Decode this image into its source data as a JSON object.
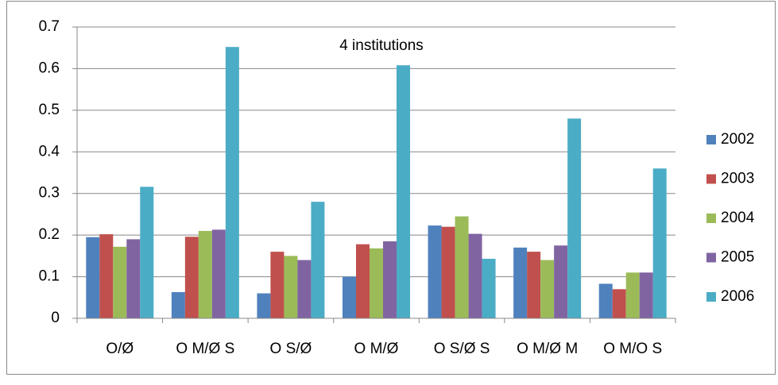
{
  "chart_data": {
    "type": "bar",
    "title": "4 institutions",
    "categories": [
      "O/Ø",
      "O M/Ø S",
      "O S/Ø",
      "O M/Ø",
      "O S/Ø S",
      "O M/Ø M",
      "O M/O S"
    ],
    "series": [
      {
        "name": "2002",
        "color": "#4f81bd",
        "values": [
          0.195,
          0.063,
          0.06,
          0.1,
          0.223,
          0.17,
          0.083
        ]
      },
      {
        "name": "2003",
        "color": "#c0504d",
        "values": [
          0.202,
          0.196,
          0.16,
          0.178,
          0.22,
          0.16,
          0.07
        ]
      },
      {
        "name": "2004",
        "color": "#9bbb59",
        "values": [
          0.172,
          0.21,
          0.15,
          0.168,
          0.245,
          0.14,
          0.11
        ]
      },
      {
        "name": "2005",
        "color": "#8064a2",
        "values": [
          0.19,
          0.213,
          0.14,
          0.185,
          0.203,
          0.175,
          0.11
        ]
      },
      {
        "name": "2006",
        "color": "#4bacc6",
        "values": [
          0.316,
          0.652,
          0.28,
          0.608,
          0.143,
          0.48,
          0.36
        ]
      }
    ],
    "ylim": [
      0,
      0.7
    ],
    "yticks": [
      0,
      0.1,
      0.2,
      0.3,
      0.4,
      0.5,
      0.6,
      0.7
    ],
    "grid": true,
    "legend": "right"
  }
}
